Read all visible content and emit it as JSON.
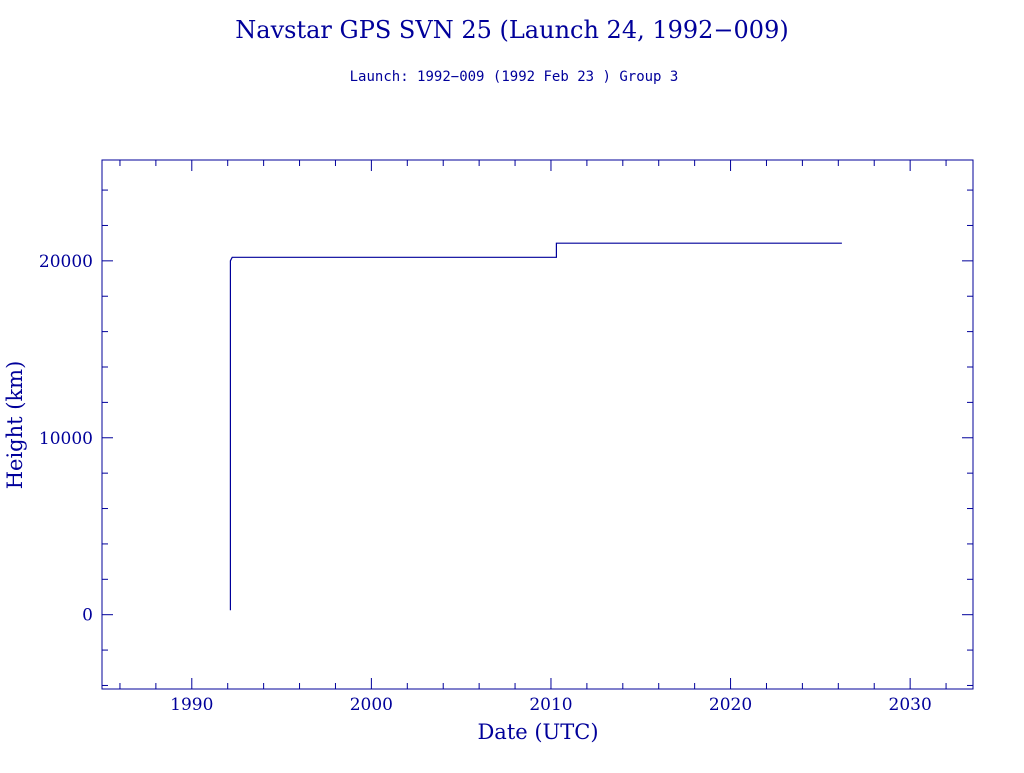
{
  "chart_data": {
    "type": "line",
    "title": "Navstar GPS SVN 25 (Launch 24, 1992−009)",
    "subtitle": "Launch: 1992−009  (1992 Feb 23 )  Group 3",
    "xlabel": "Date (UTC)",
    "ylabel": "Height (km)",
    "xlim": [
      1985.0,
      2033.5
    ],
    "ylim": [
      -4200,
      25700
    ],
    "x_ticks": [
      1990,
      2000,
      2010,
      2020,
      2030
    ],
    "x_tick_labels": [
      "1990",
      "2000",
      "2010",
      "2020",
      "2030"
    ],
    "y_ticks": [
      0,
      10000,
      20000
    ],
    "y_tick_labels": [
      "0",
      "10000",
      "20000"
    ],
    "grid": false,
    "color": "#00009a",
    "series": [
      {
        "x": [
          1992.15,
          1992.15,
          1992.25,
          2010.3,
          2010.3,
          2026.2
        ],
        "y": [
          250,
          20000,
          20200,
          20200,
          21000,
          21000
        ]
      }
    ]
  }
}
